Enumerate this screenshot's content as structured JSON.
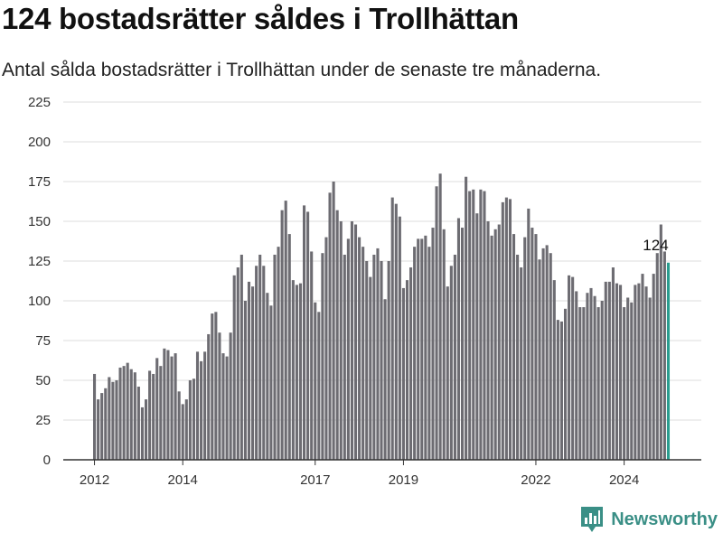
{
  "title": "124 bostadsrätter såldes i Trollhättan",
  "subtitle": "Antal sålda bostadsrätter i Trollhättan under de senaste tre månaderna.",
  "brand": {
    "name": "Newsworthy",
    "icon": "newsworthy-logo-icon",
    "color": "#3a8f86"
  },
  "chart_data": {
    "type": "bar",
    "title": "124 bostadsrätter såldes i Trollhättan",
    "subtitle": "Antal sålda bostadsrätter i Trollhättan under de senaste tre månaderna.",
    "xlabel": "",
    "ylabel": "",
    "ylim": [
      0,
      225
    ],
    "yticks": [
      "0",
      "25",
      "50",
      "75",
      "100",
      "125",
      "150",
      "175",
      "200",
      "225"
    ],
    "xtick_labels": [
      "2012",
      "2014",
      "2017",
      "2019",
      "2022",
      "2024"
    ],
    "grid": true,
    "bar_color": "#6d6c72",
    "highlight_color": "#2a9d8f",
    "data_label": "124",
    "values": [
      54,
      38,
      42,
      45,
      52,
      49,
      50,
      58,
      59,
      61,
      57,
      55,
      46,
      33,
      38,
      56,
      54,
      64,
      59,
      70,
      69,
      65,
      67,
      43,
      35,
      38,
      50,
      51,
      68,
      62,
      68,
      79,
      92,
      93,
      80,
      67,
      65,
      80,
      116,
      121,
      129,
      100,
      112,
      109,
      122,
      129,
      122,
      105,
      97,
      129,
      134,
      157,
      163,
      142,
      113,
      110,
      111,
      160,
      156,
      131,
      99,
      93,
      130,
      140,
      168,
      175,
      157,
      150,
      129,
      139,
      150,
      148,
      140,
      134,
      125,
      115,
      129,
      133,
      125,
      101,
      125,
      165,
      161,
      153,
      108,
      113,
      121,
      134,
      139,
      139,
      141,
      134,
      146,
      172,
      180,
      145,
      109,
      122,
      129,
      152,
      146,
      178,
      169,
      170,
      155,
      170,
      169,
      150,
      141,
      145,
      148,
      162,
      165,
      164,
      142,
      129,
      121,
      140,
      158,
      146,
      142,
      126,
      133,
      135,
      130,
      113,
      88,
      87,
      95,
      116,
      115,
      106,
      96,
      96,
      105,
      108,
      103,
      96,
      100,
      112,
      112,
      121,
      111,
      110,
      96,
      102,
      99,
      110,
      111,
      117,
      109,
      102,
      117,
      130,
      148,
      131,
      124
    ]
  }
}
